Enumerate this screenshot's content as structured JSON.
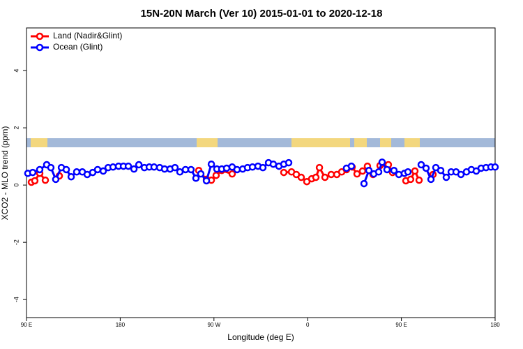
{
  "chart_data": {
    "type": "line",
    "title": "15N-20N March (Ver 10)   2015-01-01 to 2020-12-18",
    "x_label": "Longitude (deg E)",
    "y_label": "XCO2 - MLO trend (ppm)",
    "xlim": [
      90,
      540
    ],
    "xticks": [
      {
        "value": 90,
        "label": "90 E"
      },
      180,
      {
        "value": 270,
        "label": "90 W"
      },
      {
        "value": 360,
        "label": "0"
      },
      {
        "value": 450,
        "label": "90 E"
      },
      {
        "value": 540,
        "label": "180"
      }
    ],
    "ylim": [
      -4.63,
      5.49
    ],
    "yticks": [
      -4,
      -2,
      0,
      2,
      4
    ],
    "legend": "top-left",
    "series": [
      {
        "name": "Land (Nadir&Glint)",
        "color": "#ff0000",
        "x": [
          94.7,
          98.0,
          102.7,
          108.1,
          115,
          121.5,
          190,
          255.4,
          262.8,
          267.5,
          272.1,
          277.5,
          287.5,
          310,
          337.1,
          344.5,
          349.1,
          353.8,
          359.2,
          363.9,
          367.9,
          371.3,
          376.6,
          382.6,
          388.0,
          392.7,
          397.3,
          402.7,
          407.4,
          412.7,
          417.4,
          422.8,
          426,
          429.5,
          437.5,
          441.5,
          448,
          454.3,
          458.9,
          463.0,
          467.0,
          474,
          480.4
        ],
        "values": [
          0.1,
          0.15,
          0.41,
          0.17,
          null,
          0.32,
          null,
          0.51,
          0.2,
          0.17,
          0.34,
          0.51,
          0.39,
          null,
          0.44,
          0.46,
          0.37,
          0.27,
          0.12,
          0.22,
          0.27,
          0.61,
          0.27,
          0.37,
          0.37,
          0.46,
          0.54,
          0.63,
          0.39,
          0.49,
          0.66,
          0.37,
          null,
          0.68,
          0.71,
          0.44,
          null,
          0.15,
          0.2,
          0.49,
          0.17,
          null,
          0.37
        ]
      },
      {
        "name": "Ocean (Glint)",
        "color": "#0000ff",
        "x": [
          91.3,
          96.0,
          102.7,
          109.4,
          113.4,
          118.1,
          123.5,
          128.2,
          132.9,
          138.2,
          143.6,
          148.3,
          153.6,
          158.3,
          163.7,
          168.4,
          173.1,
          178.4,
          183.1,
          187.8,
          193.2,
          197.9,
          203.2,
          207.9,
          212.5,
          217.9,
          222.6,
          227.9,
          232.6,
          237.3,
          242.7,
          248.0,
          252.7,
          257.4,
          262.8,
          267.5,
          272.8,
          277.5,
          282.2,
          287.5,
          292.2,
          297.6,
          302.3,
          307.0,
          312.3,
          317.0,
          322.4,
          327.0,
          332.4,
          337.1,
          341.8,
          370,
          397.3,
          402.0,
          408,
          414.1,
          418.8,
          423.5,
          428.2,
          431.5,
          436.2,
          442.9,
          447.6,
          452.9,
          456.3,
          463,
          469.0,
          473.7,
          478.4,
          483.1,
          487.8,
          493.1,
          497.8,
          502.5,
          507.2,
          512.5,
          517.2,
          521.9,
          526.6,
          531.3,
          536.0,
          540
        ],
        "values": [
          0.41,
          0.44,
          0.54,
          0.71,
          0.61,
          0.2,
          0.61,
          0.54,
          0.29,
          0.46,
          0.46,
          0.37,
          0.44,
          0.54,
          0.49,
          0.61,
          0.63,
          0.66,
          0.66,
          0.66,
          0.56,
          0.71,
          0.61,
          0.63,
          0.63,
          0.61,
          0.56,
          0.56,
          0.61,
          0.46,
          0.54,
          0.54,
          0.24,
          0.39,
          0.15,
          0.73,
          0.56,
          0.56,
          0.59,
          0.63,
          0.54,
          0.56,
          0.61,
          0.63,
          0.66,
          0.61,
          0.78,
          0.73,
          0.66,
          0.73,
          0.78,
          null,
          0.59,
          0.66,
          null,
          0.05,
          0.51,
          0.39,
          0.46,
          0.8,
          0.54,
          0.51,
          0.37,
          0.41,
          0.46,
          null,
          0.71,
          0.59,
          0.2,
          0.61,
          0.51,
          0.27,
          0.46,
          0.46,
          0.37,
          0.46,
          0.54,
          0.49,
          0.59,
          0.61,
          0.63,
          0.63
        ]
      }
    ]
  }
}
